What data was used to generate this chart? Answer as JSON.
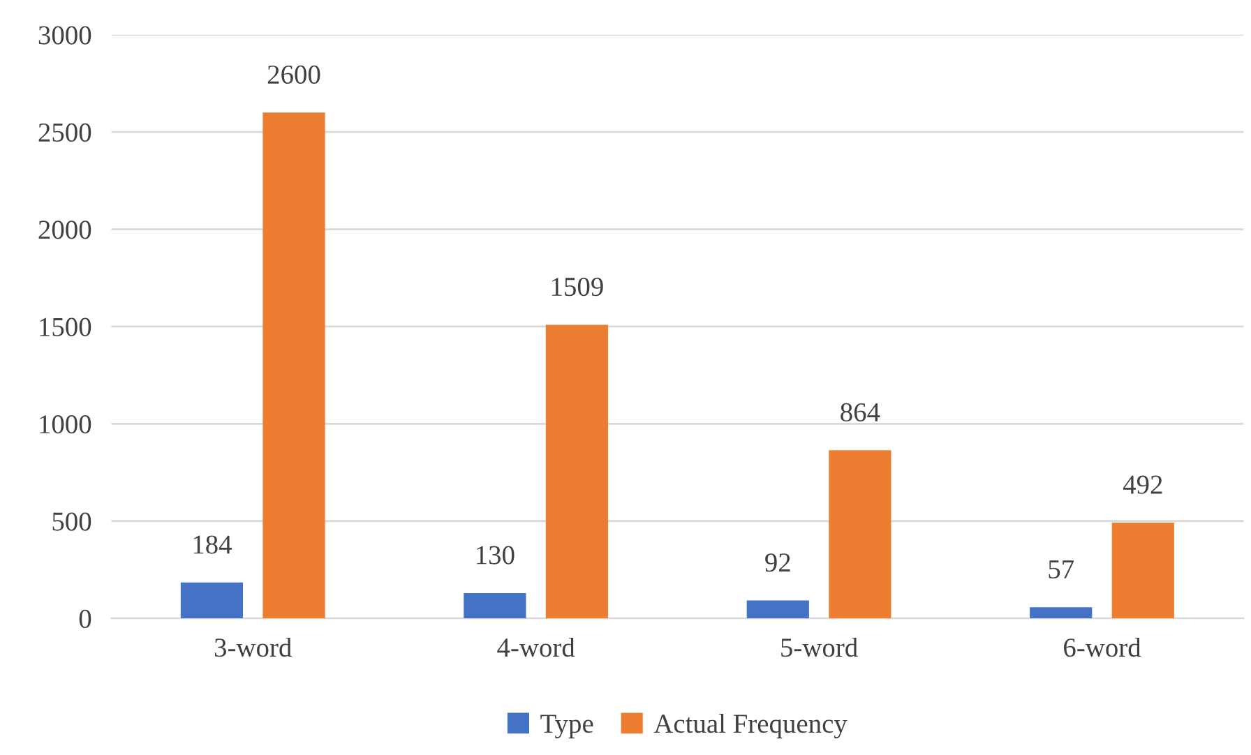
{
  "chart_data": {
    "type": "bar",
    "categories": [
      "3-word",
      "4-word",
      "5-word",
      "6-word"
    ],
    "series": [
      {
        "name": "Type",
        "color": "#4472c4",
        "values": [
          184,
          130,
          92,
          57
        ]
      },
      {
        "name": "Actual Frequency",
        "color": "#ed7d31",
        "values": [
          2600,
          1509,
          864,
          492
        ]
      }
    ],
    "ylim": [
      0,
      3000
    ],
    "yticks": [
      0,
      500,
      1000,
      1500,
      2000,
      2500,
      3000
    ],
    "grid": "y",
    "legend": "bottom",
    "data_labels": true
  }
}
